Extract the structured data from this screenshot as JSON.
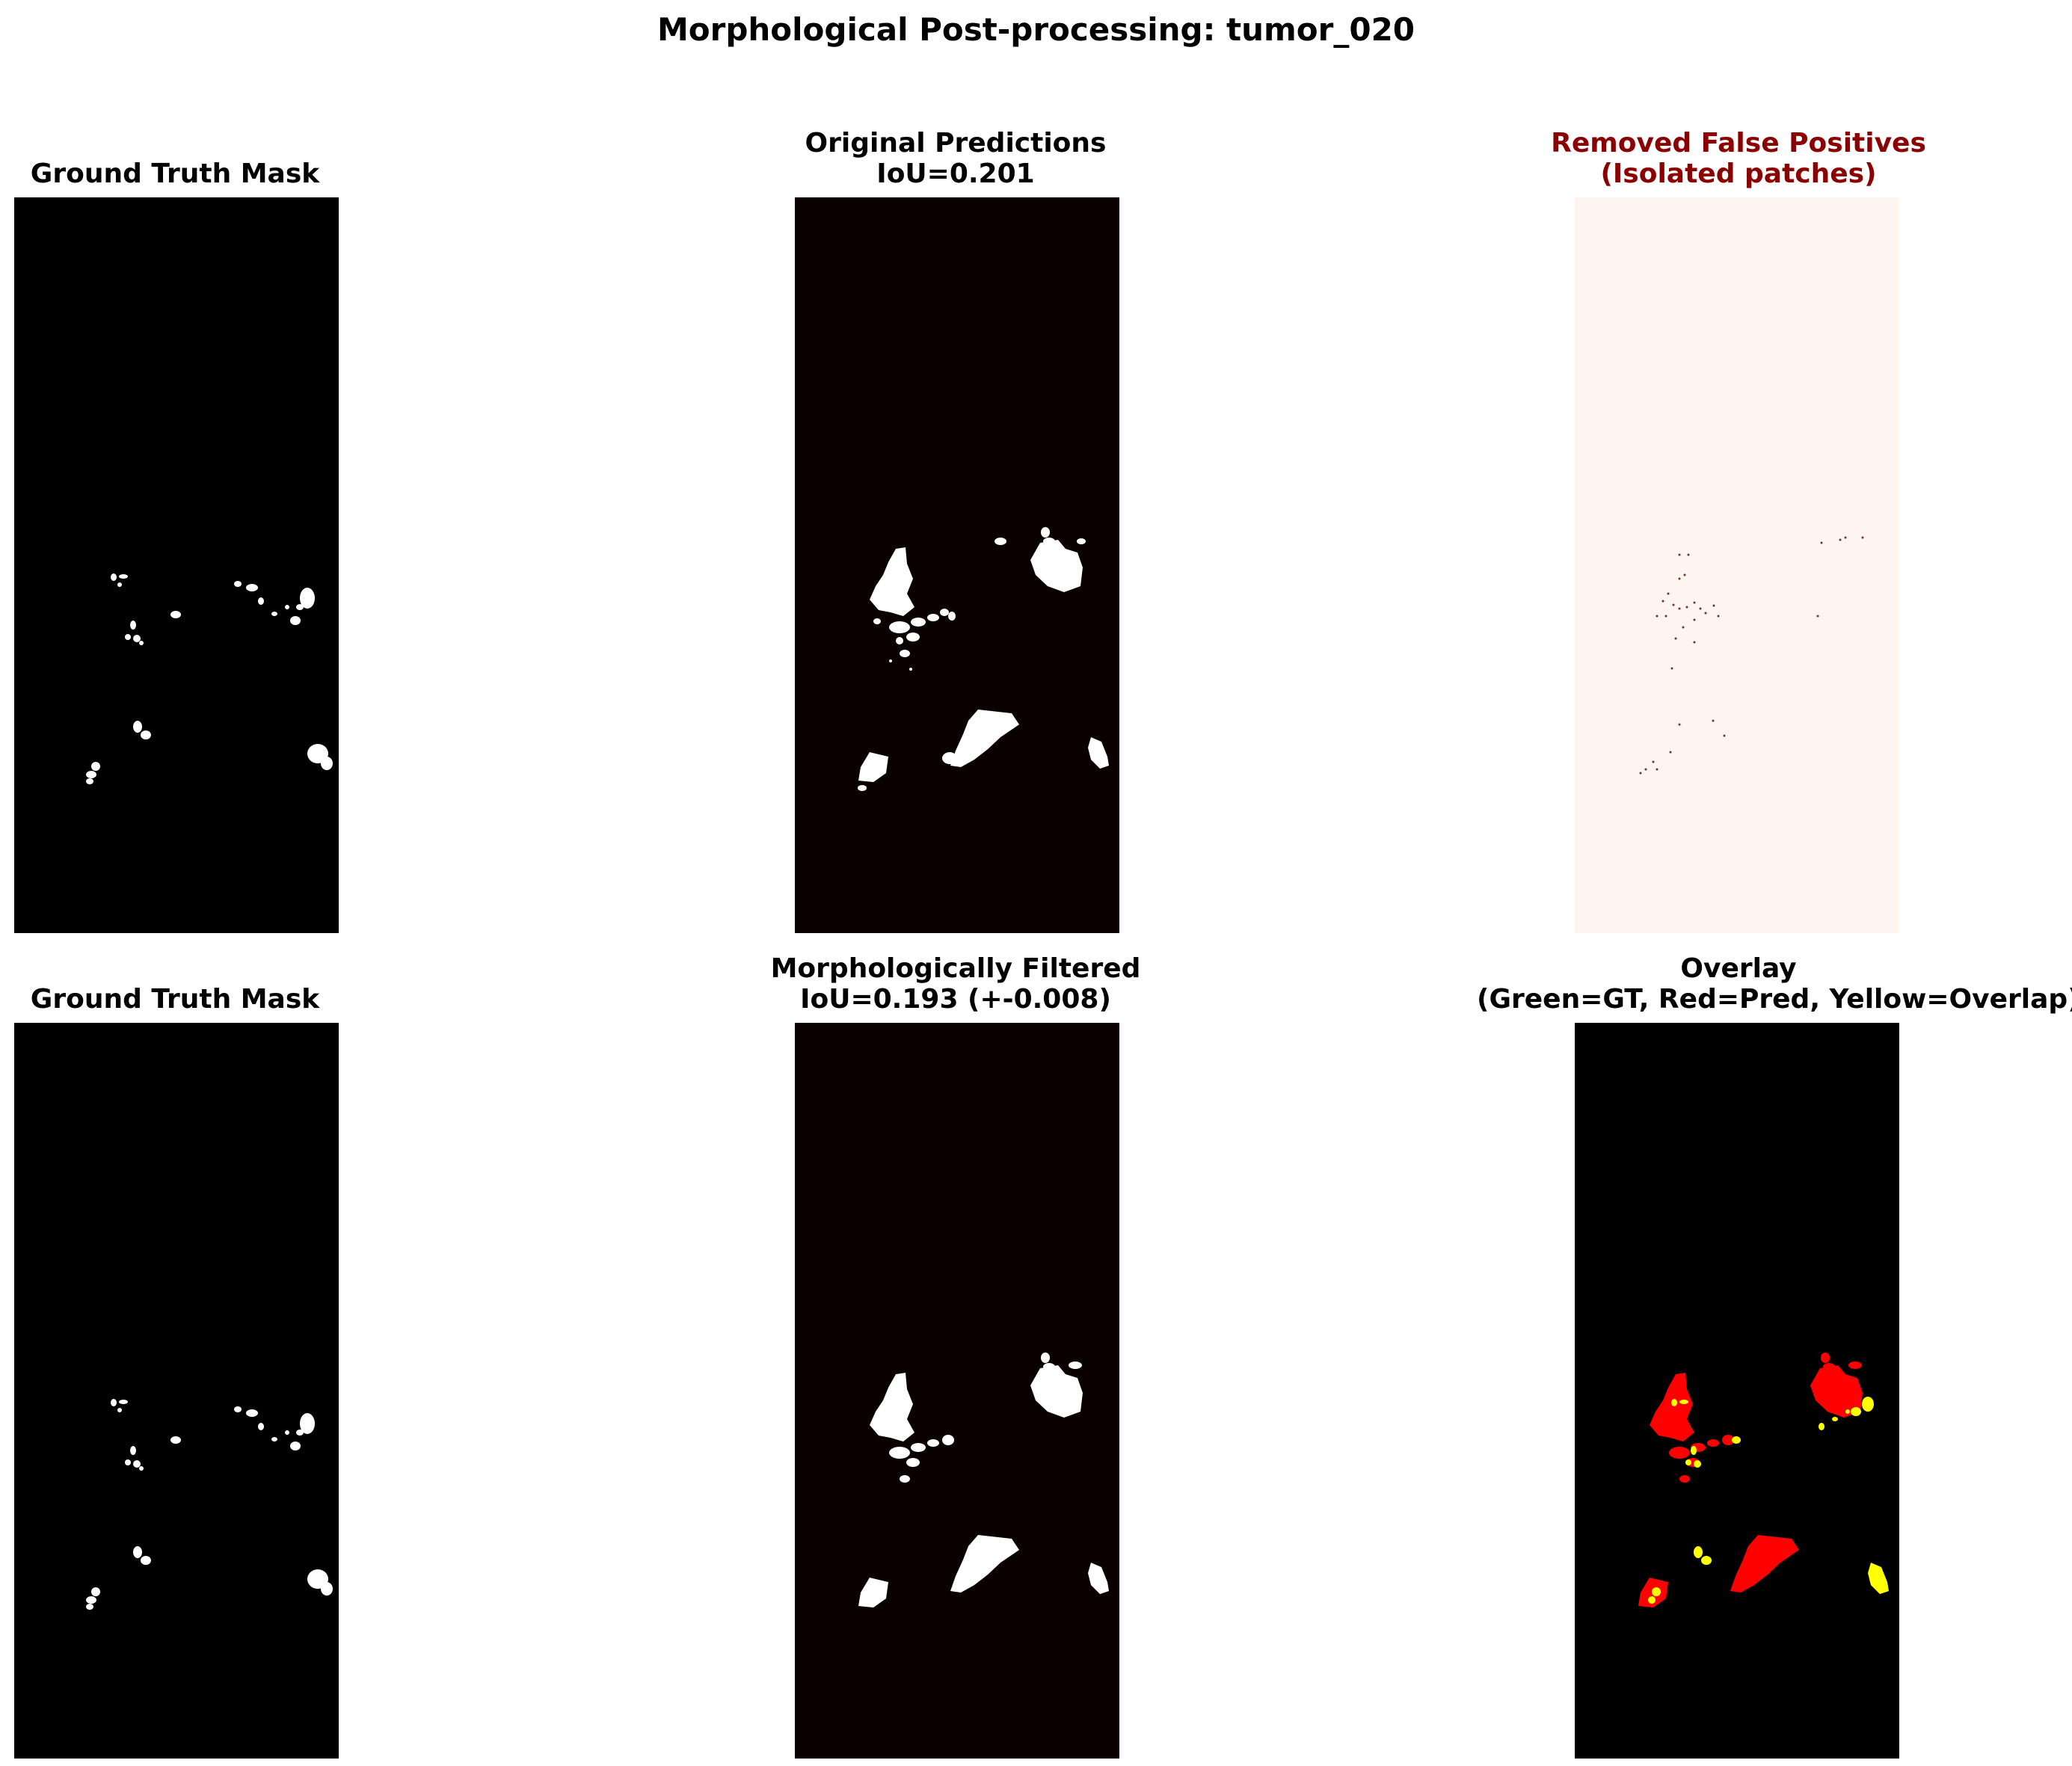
{
  "title": "Morphological Post-processing: tumor_020",
  "panels": [
    {
      "lines": [
        "Ground Truth Mask"
      ]
    },
    {
      "lines": [
        "Original Predictions",
        "IoU=0.201"
      ]
    },
    {
      "lines": [
        "Removed False Positives",
        "(Isolated patches)"
      ]
    },
    {
      "lines": [
        "Ground Truth Mask"
      ]
    },
    {
      "lines": [
        "Morphologically Filtered",
        "IoU=0.193 (+-0.008)"
      ]
    },
    {
      "lines": [
        "Overlay",
        "(Green=GT, Red=Pred, Yellow=Overlap)"
      ]
    }
  ],
  "colors": {
    "gt_background": "#000000",
    "pred_background": "#0b0000",
    "removed_background": "#fff5f0",
    "removed_marks": "#7a2a2a",
    "mask_foreground": "#ffffff",
    "overlay_pred": "#ff0000",
    "overlay_overlap": "#ffff00",
    "title_red": "#8b0000"
  }
}
